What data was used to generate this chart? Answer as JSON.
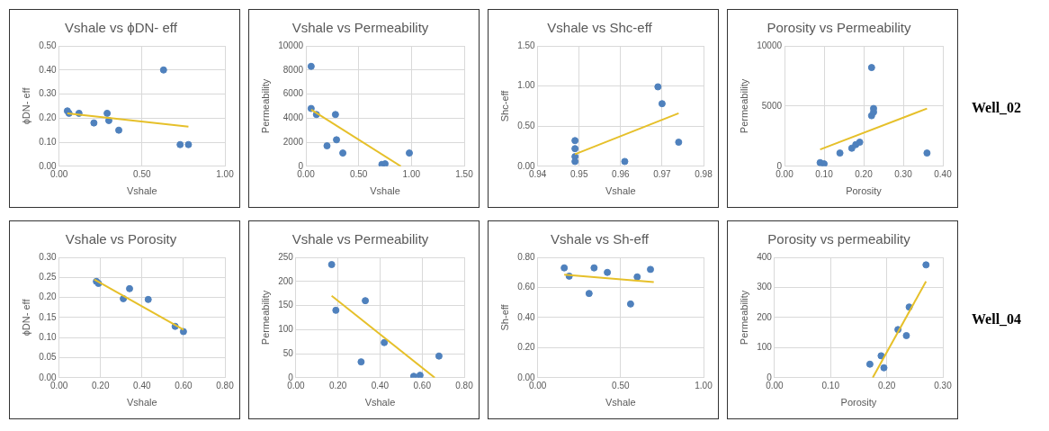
{
  "chart_data": [
    {
      "type": "scatter",
      "title": "Vshale vs ϕDN- eff",
      "xlabel": "Vshale",
      "ylabel": "ϕDN- eff",
      "xlim": [
        0,
        1
      ],
      "xticks": [
        {
          "value": 0,
          "label": "0.00"
        },
        {
          "value": 0.5,
          "label": "0.50"
        },
        {
          "value": 1,
          "label": "1.00"
        }
      ],
      "ylim": [
        0,
        0.5
      ],
      "yticks": [
        {
          "value": 0,
          "label": "0.00"
        },
        {
          "value": 0.1,
          "label": "0.10"
        },
        {
          "value": 0.2,
          "label": "0.20"
        },
        {
          "value": 0.3,
          "label": "0.30"
        },
        {
          "value": 0.4,
          "label": "0.40"
        },
        {
          "value": 0.5,
          "label": "0.50"
        }
      ],
      "grid": true,
      "series": [
        {
          "marker": "circle",
          "color": "#4f81bd",
          "x": [
            0.05,
            0.06,
            0.12,
            0.21,
            0.29,
            0.3,
            0.36,
            0.63,
            0.73,
            0.78
          ],
          "values": [
            0.23,
            0.22,
            0.22,
            0.18,
            0.22,
            0.19,
            0.15,
            0.4,
            0.09,
            0.09
          ]
        },
        {
          "type": "line",
          "marker": "none",
          "color": "#e6c02a",
          "x": [
            0.05,
            0.78
          ],
          "values": [
            0.22,
            0.165
          ]
        }
      ]
    },
    {
      "type": "scatter",
      "title": "Vshale vs Permeability",
      "xlabel": "Vshale",
      "ylabel": "Permeability",
      "xlim": [
        0,
        1.5
      ],
      "xticks": [
        {
          "value": 0,
          "label": "0.00"
        },
        {
          "value": 0.5,
          "label": "0.50"
        },
        {
          "value": 1,
          "label": "1.00"
        },
        {
          "value": 1.5,
          "label": "1.50"
        }
      ],
      "ylim": [
        0,
        10000
      ],
      "yticks": [
        0,
        2000,
        4000,
        6000,
        8000,
        10000
      ],
      "grid": true,
      "series": [
        {
          "marker": "circle",
          "color": "#4f81bd",
          "x": [
            0.05,
            0.05,
            0.1,
            0.2,
            0.28,
            0.29,
            0.35,
            0.72,
            0.75,
            0.98
          ],
          "values": [
            8300,
            4800,
            4300,
            1700,
            4300,
            2200,
            1100,
            150,
            200,
            1100
          ]
        },
        {
          "type": "line",
          "marker": "none",
          "color": "#e6c02a",
          "x": [
            0.05,
            0.9
          ],
          "values": [
            4700,
            0
          ]
        }
      ]
    },
    {
      "type": "scatter",
      "title": "Vshale vs Shc-eff",
      "xlabel": "Vshale",
      "ylabel": "Shc-eff",
      "xlim": [
        0.94,
        0.98
      ],
      "xticks": [
        0.94,
        0.95,
        0.96,
        0.97,
        0.98
      ],
      "ylim": [
        0,
        1.5
      ],
      "yticks": [
        {
          "value": 0,
          "label": "0.00"
        },
        {
          "value": 0.5,
          "label": "0.50"
        },
        {
          "value": 1,
          "label": "1.00"
        },
        {
          "value": 1.5,
          "label": "1.50"
        }
      ],
      "grid": true,
      "series": [
        {
          "marker": "circle",
          "color": "#4f81bd",
          "x": [
            0.949,
            0.949,
            0.949,
            0.949,
            0.961,
            0.969,
            0.97,
            0.974
          ],
          "values": [
            0.32,
            0.22,
            0.12,
            0.06,
            0.06,
            0.99,
            0.78,
            0.3
          ]
        },
        {
          "type": "line",
          "marker": "none",
          "color": "#e6c02a",
          "x": [
            0.949,
            0.974
          ],
          "values": [
            0.15,
            0.66
          ]
        }
      ]
    },
    {
      "type": "scatter",
      "title": "Porosity vs Permeability",
      "xlabel": "Porosity",
      "ylabel": "Permeability",
      "xlim": [
        0,
        0.4
      ],
      "xticks": [
        {
          "value": 0,
          "label": "0.00"
        },
        {
          "value": 0.1,
          "label": "0.10"
        },
        {
          "value": 0.2,
          "label": "0.20"
        },
        {
          "value": 0.3,
          "label": "0.30"
        },
        {
          "value": 0.4,
          "label": "0.40"
        }
      ],
      "ylim": [
        0,
        10000
      ],
      "yticks": [
        0,
        5000,
        10000
      ],
      "grid": true,
      "annotations": [
        "Well_02"
      ],
      "series": [
        {
          "marker": "circle",
          "color": "#4f81bd",
          "x": [
            0.09,
            0.1,
            0.14,
            0.17,
            0.18,
            0.19,
            0.22,
            0.225,
            0.225,
            0.22,
            0.36
          ],
          "values": [
            300,
            200,
            1100,
            1500,
            1800,
            2000,
            4200,
            4500,
            4800,
            8200,
            1100
          ]
        },
        {
          "type": "line",
          "marker": "none",
          "color": "#e6c02a",
          "x": [
            0.09,
            0.36
          ],
          "values": [
            1400,
            4800
          ]
        }
      ]
    },
    {
      "type": "scatter",
      "title": "Vshale vs Porosity",
      "xlabel": "Vshale",
      "ylabel": "ϕDN- eff",
      "xlim": [
        0,
        0.8
      ],
      "xticks": [
        {
          "value": 0,
          "label": "0.00"
        },
        {
          "value": 0.2,
          "label": "0.20"
        },
        {
          "value": 0.4,
          "label": "0.40"
        },
        {
          "value": 0.6,
          "label": "0.60"
        },
        {
          "value": 0.8,
          "label": "0.80"
        }
      ],
      "ylim": [
        0,
        0.3
      ],
      "yticks": [
        {
          "value": 0,
          "label": "0.00"
        },
        {
          "value": 0.05,
          "label": "0.05"
        },
        {
          "value": 0.1,
          "label": "0.10"
        },
        {
          "value": 0.15,
          "label": "0.15"
        },
        {
          "value": 0.2,
          "label": "0.20"
        },
        {
          "value": 0.25,
          "label": "0.25"
        },
        {
          "value": 0.3,
          "label": "0.30"
        }
      ],
      "grid": true,
      "series": [
        {
          "marker": "circle",
          "color": "#4f81bd",
          "x": [
            0.18,
            0.19,
            0.31,
            0.34,
            0.43,
            0.56,
            0.6
          ],
          "values": [
            0.24,
            0.235,
            0.197,
            0.222,
            0.195,
            0.128,
            0.115
          ]
        },
        {
          "type": "line",
          "marker": "none",
          "color": "#e6c02a",
          "x": [
            0.17,
            0.6
          ],
          "values": [
            0.245,
            0.12
          ]
        }
      ]
    },
    {
      "type": "scatter",
      "title": "Vshale vs Permeability",
      "xlabel": "Vshale",
      "ylabel": "Permeability",
      "xlim": [
        0,
        0.8
      ],
      "xticks": [
        {
          "value": 0,
          "label": "0.00"
        },
        {
          "value": 0.2,
          "label": "0.20"
        },
        {
          "value": 0.4,
          "label": "0.40"
        },
        {
          "value": 0.6,
          "label": "0.60"
        },
        {
          "value": 0.8,
          "label": "0.80"
        }
      ],
      "ylim": [
        0,
        250
      ],
      "yticks": [
        0,
        50,
        100,
        150,
        200,
        250
      ],
      "grid": true,
      "series": [
        {
          "marker": "circle",
          "color": "#4f81bd",
          "x": [
            0.17,
            0.19,
            0.31,
            0.33,
            0.42,
            0.56,
            0.59,
            0.68
          ],
          "values": [
            235,
            140,
            33,
            160,
            73,
            3,
            5,
            45
          ]
        },
        {
          "type": "line",
          "marker": "none",
          "color": "#e6c02a",
          "x": [
            0.17,
            0.66
          ],
          "values": [
            170,
            0
          ]
        }
      ]
    },
    {
      "type": "scatter",
      "title": "Vshale vs Sh-eff",
      "xlabel": "Vshale",
      "ylabel": "Sh-eff",
      "xlim": [
        0,
        1
      ],
      "xticks": [
        {
          "value": 0,
          "label": "0.00"
        },
        {
          "value": 0.5,
          "label": "0.50"
        },
        {
          "value": 1,
          "label": "1.00"
        }
      ],
      "ylim": [
        0,
        0.8
      ],
      "yticks": [
        {
          "value": 0,
          "label": "0.00"
        },
        {
          "value": 0.2,
          "label": "0.20"
        },
        {
          "value": 0.4,
          "label": "0.40"
        },
        {
          "value": 0.6,
          "label": "0.60"
        },
        {
          "value": 0.8,
          "label": "0.80"
        }
      ],
      "grid": true,
      "series": [
        {
          "marker": "circle",
          "color": "#4f81bd",
          "x": [
            0.16,
            0.19,
            0.31,
            0.34,
            0.42,
            0.56,
            0.6,
            0.68
          ],
          "values": [
            0.73,
            0.675,
            0.56,
            0.73,
            0.7,
            0.49,
            0.67,
            0.72
          ]
        },
        {
          "type": "line",
          "marker": "none",
          "color": "#e6c02a",
          "x": [
            0.16,
            0.7
          ],
          "values": [
            0.685,
            0.635
          ]
        }
      ]
    },
    {
      "type": "scatter",
      "title": "Porosity vs permeability",
      "xlabel": "Porosity",
      "ylabel": "Permeability",
      "xlim": [
        0,
        0.3
      ],
      "xticks": [
        {
          "value": 0,
          "label": "0.00"
        },
        {
          "value": 0.1,
          "label": "0.10"
        },
        {
          "value": 0.2,
          "label": "0.20"
        },
        {
          "value": 0.3,
          "label": "0.30"
        }
      ],
      "ylim": [
        0,
        400
      ],
      "yticks": [
        0,
        100,
        200,
        300,
        400
      ],
      "grid": true,
      "annotations": [
        "Well_04"
      ],
      "series": [
        {
          "marker": "circle",
          "color": "#4f81bd",
          "x": [
            0.17,
            0.19,
            0.195,
            0.22,
            0.235,
            0.24,
            0.27
          ],
          "values": [
            45,
            73,
            33,
            160,
            140,
            235,
            375
          ]
        },
        {
          "type": "line",
          "marker": "none",
          "color": "#e6c02a",
          "x": [
            0.175,
            0.27
          ],
          "values": [
            0,
            320
          ]
        }
      ]
    }
  ]
}
